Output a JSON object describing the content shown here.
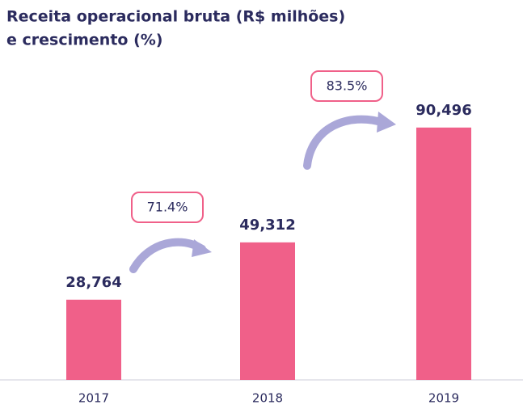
{
  "chart_data": {
    "type": "bar",
    "title": [
      "Receita operacional bruta (R$ milhões)",
      "e crescimento (%)"
    ],
    "categories": [
      "2017",
      "2018",
      "2019"
    ],
    "values": [
      28764,
      49312,
      90496
    ],
    "value_labels": [
      "28,764",
      "49,312",
      "90,496"
    ],
    "growth_labels": [
      "71.4%",
      "83.5%"
    ],
    "color": "#f06089",
    "ylim": [
      0,
      100000
    ]
  }
}
